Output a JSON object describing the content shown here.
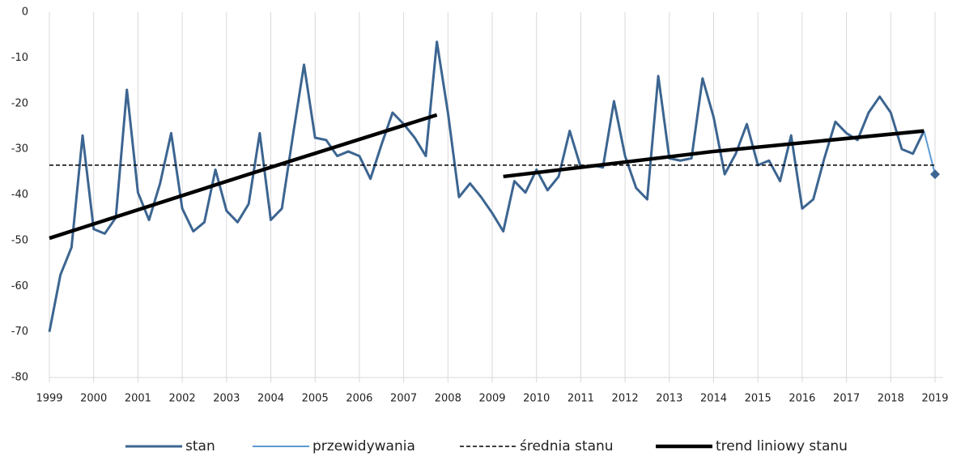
{
  "chart_data": {
    "type": "line",
    "xlim": [
      1999,
      2019
    ],
    "xticks": [
      1999,
      2000,
      2001,
      2002,
      2003,
      2004,
      2005,
      2006,
      2007,
      2008,
      2009,
      2010,
      2011,
      2012,
      2013,
      2014,
      2015,
      2016,
      2017,
      2018,
      2019
    ],
    "ylim": [
      -80,
      0
    ],
    "yticks": [
      0,
      -10,
      -20,
      -30,
      -40,
      -50,
      -60,
      -70,
      -80
    ],
    "grid": true,
    "series": [
      {
        "name": "stan",
        "color": "#3c6591",
        "width": 3,
        "x": [
          1999,
          1999.25,
          1999.5,
          1999.75,
          2000,
          2000.25,
          2000.5,
          2000.75,
          2001,
          2001.25,
          2001.5,
          2001.75,
          2002,
          2002.25,
          2002.5,
          2002.75,
          2003,
          2003.25,
          2003.5,
          2003.75,
          2004,
          2004.25,
          2004.5,
          2004.75,
          2005,
          2005.25,
          2005.5,
          2005.75,
          2006,
          2006.25,
          2006.5,
          2006.75,
          2007,
          2007.25,
          2007.5,
          2007.75,
          2008,
          2008.25,
          2008.5,
          2008.75,
          2009,
          2009.25,
          2009.5,
          2009.75,
          2010,
          2010.25,
          2010.5,
          2010.75,
          2011,
          2011.25,
          2011.5,
          2011.75,
          2012,
          2012.25,
          2012.5,
          2012.75,
          2013,
          2013.25,
          2013.5,
          2013.75,
          2014,
          2014.25,
          2014.5,
          2014.75,
          2015,
          2015.25,
          2015.5,
          2015.75,
          2016,
          2016.25,
          2016.5,
          2016.75,
          2017,
          2017.25,
          2017.5,
          2017.75,
          2018,
          2018.25,
          2018.5,
          2018.75
        ],
        "values": [
          -70,
          -57.5,
          -51.5,
          -27,
          -47.5,
          -48.5,
          -45,
          -17,
          -39.5,
          -45.5,
          -37.5,
          -26.5,
          -43,
          -48,
          -46,
          -34.5,
          -43.5,
          -46,
          -42,
          -26.5,
          -45.5,
          -43,
          -27,
          -11.5,
          -27.5,
          -28,
          -31.5,
          -30.5,
          -31.5,
          -36.5,
          -29,
          -22,
          -24.5,
          -27.5,
          -31.5,
          -6.5,
          -22,
          -40.5,
          -37.5,
          -40.5,
          -44,
          -48,
          -37,
          -39.5,
          -34.5,
          -39,
          -36,
          -26,
          -34,
          -33.5,
          -34,
          -19.5,
          -31.5,
          -38.5,
          -41,
          -14,
          -32,
          -32.5,
          -32,
          -14.5,
          -23,
          -35.5,
          -31,
          -24.5,
          -33.5,
          -32.5,
          -37,
          -27,
          -43,
          -41,
          -32,
          -24,
          -26.5,
          -28,
          -22,
          -18.5,
          -22,
          -30,
          -31,
          -26
        ]
      },
      {
        "name": "przewidywania",
        "color": "#5b9bd5",
        "width": 2,
        "marker": "diamond",
        "marker_color": "#3c6591",
        "x": [
          2018.75,
          2019
        ],
        "values": [
          -26,
          -35.5
        ]
      },
      {
        "name": "średnia stanu",
        "color": "#000000",
        "width": 1.5,
        "dash": true,
        "x": [
          1999,
          2019
        ],
        "values": [
          -33.5,
          -33.5
        ]
      },
      {
        "name": "trend liniowy stanu",
        "color": "#000000",
        "width": 4.5,
        "x": [
          1999,
          2003.5,
          2007.75,
          2008.5,
          2009.25,
          2014,
          2018.75
        ],
        "values": [
          -49.5,
          -35.5,
          -22.5,
          null,
          -36,
          -30.5,
          -26
        ]
      }
    ]
  }
}
